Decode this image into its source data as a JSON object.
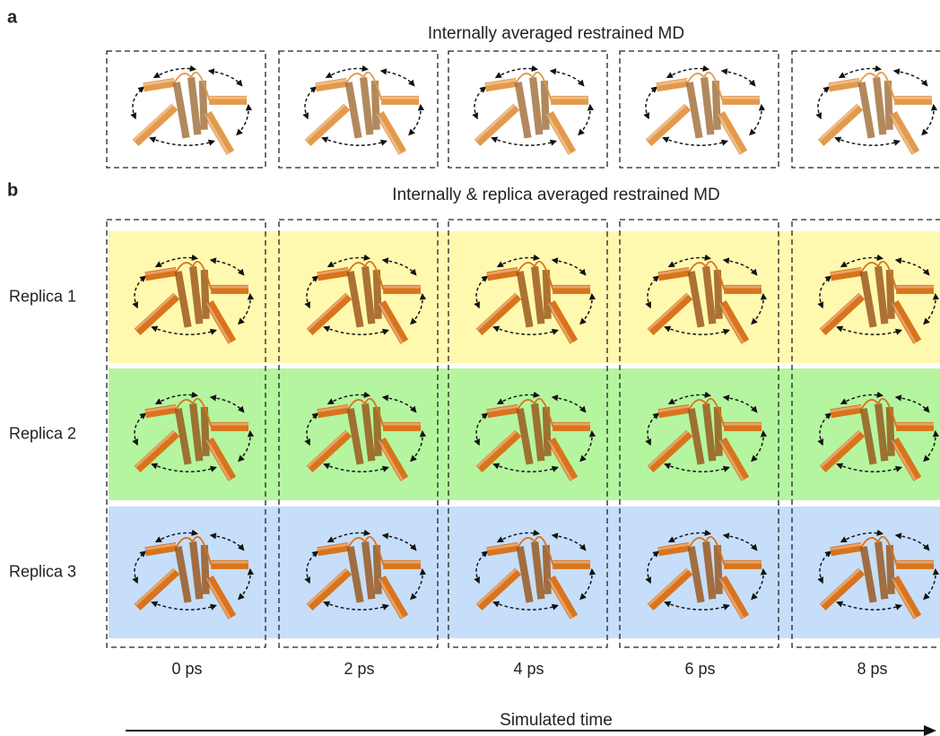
{
  "panel_a": {
    "label": "a",
    "title": "Internally averaged restrained MD"
  },
  "panel_b": {
    "label": "b",
    "title": "Internally & replica averaged restrained MD",
    "replicas": [
      "Replica 1",
      "Replica 2",
      "Replica 3"
    ],
    "times": [
      "0 ps",
      "2 ps",
      "4 ps",
      "6 ps",
      "8 ps"
    ]
  },
  "time_axis": {
    "label": "Simulated time"
  }
}
